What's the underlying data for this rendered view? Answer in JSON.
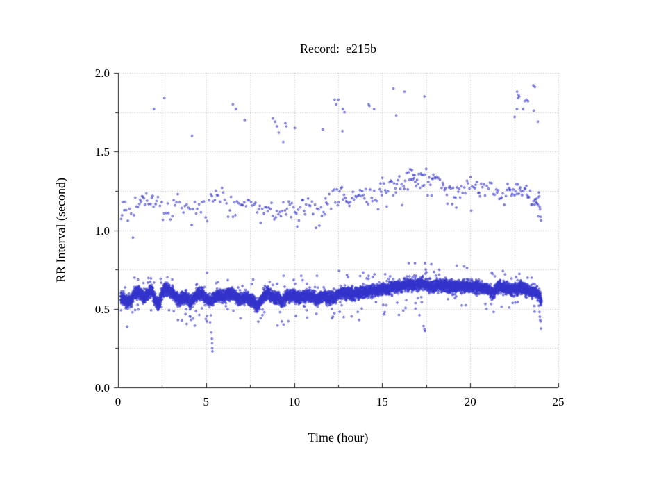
{
  "window": {
    "background": "#ffffff"
  },
  "chart_data": {
    "type": "scatter",
    "title": "Record:  e215b",
    "xlabel": "Time (hour)",
    "ylabel": "RR Interval (second)",
    "xlim": [
      0,
      25
    ],
    "ylim": [
      0.0,
      2.0
    ],
    "grid": {
      "style": "dotted",
      "color": "#b8b8b8",
      "x_step": 2.5,
      "y_step": 0.25
    },
    "axis_color": "#1a1a1a",
    "marker": {
      "shape": "open-circle",
      "radius_px": 1.3,
      "color": "#3333cc",
      "fill": "rgba(60,60,210,0.30)"
    },
    "x_axis": {
      "major_ticks": [
        {
          "value": 0,
          "label": "0"
        },
        {
          "value": 5,
          "label": "5"
        },
        {
          "value": 10,
          "label": "10"
        },
        {
          "value": 15,
          "label": "15"
        },
        {
          "value": 20,
          "label": "20"
        },
        {
          "value": 25,
          "label": "25"
        }
      ],
      "minor_step": 2.5
    },
    "y_axis": {
      "major_ticks": [
        {
          "value": 0.0,
          "label": "0.0"
        },
        {
          "value": 0.5,
          "label": "0.5"
        },
        {
          "value": 1.0,
          "label": "1.0"
        },
        {
          "value": 1.5,
          "label": "1.5"
        },
        {
          "value": 2.0,
          "label": "2.0"
        }
      ],
      "minor_step": 0.25
    },
    "seed": 1337,
    "series": [
      {
        "name": "normal-rr-band",
        "representation": "dense-band-profile",
        "points_total": 7400,
        "hour_range": [
          0.15,
          24.05
        ],
        "spread": 0.024,
        "low_fringe_prob": 0.012,
        "high_fringe_prob": 0.01,
        "profile": [
          [
            0.15,
            0.575
          ],
          [
            0.3,
            0.56
          ],
          [
            0.5,
            0.545
          ],
          [
            0.7,
            0.55
          ],
          [
            0.9,
            0.59
          ],
          [
            1.1,
            0.615
          ],
          [
            1.3,
            0.6
          ],
          [
            1.5,
            0.565
          ],
          [
            1.7,
            0.6
          ],
          [
            1.9,
            0.625
          ],
          [
            2.1,
            0.56
          ],
          [
            2.3,
            0.53
          ],
          [
            2.5,
            0.6
          ],
          [
            2.7,
            0.635
          ],
          [
            2.9,
            0.62
          ],
          [
            3.1,
            0.6
          ],
          [
            3.3,
            0.575
          ],
          [
            3.5,
            0.555
          ],
          [
            3.7,
            0.57
          ],
          [
            3.9,
            0.575
          ],
          [
            4.1,
            0.545
          ],
          [
            4.3,
            0.565
          ],
          [
            4.5,
            0.595
          ],
          [
            4.7,
            0.6
          ],
          [
            4.9,
            0.575
          ],
          [
            5.1,
            0.555
          ],
          [
            5.3,
            0.55
          ],
          [
            5.5,
            0.575
          ],
          [
            5.7,
            0.59
          ],
          [
            5.9,
            0.575
          ],
          [
            6.1,
            0.585
          ],
          [
            6.3,
            0.6
          ],
          [
            6.5,
            0.59
          ],
          [
            6.7,
            0.58
          ],
          [
            6.9,
            0.555
          ],
          [
            7.1,
            0.565
          ],
          [
            7.3,
            0.58
          ],
          [
            7.5,
            0.555
          ],
          [
            7.7,
            0.545
          ],
          [
            7.9,
            0.52
          ],
          [
            8.1,
            0.545
          ],
          [
            8.3,
            0.59
          ],
          [
            8.5,
            0.6
          ],
          [
            8.7,
            0.585
          ],
          [
            8.9,
            0.565
          ],
          [
            9.1,
            0.57
          ],
          [
            9.3,
            0.545
          ],
          [
            9.5,
            0.57
          ],
          [
            9.7,
            0.58
          ],
          [
            9.9,
            0.585
          ],
          [
            10.1,
            0.575
          ],
          [
            10.3,
            0.57
          ],
          [
            10.5,
            0.58
          ],
          [
            10.7,
            0.585
          ],
          [
            10.9,
            0.585
          ],
          [
            11.1,
            0.58
          ],
          [
            11.3,
            0.555
          ],
          [
            11.5,
            0.575
          ],
          [
            11.7,
            0.59
          ],
          [
            11.9,
            0.56
          ],
          [
            12.1,
            0.575
          ],
          [
            12.3,
            0.565
          ],
          [
            12.5,
            0.6
          ],
          [
            12.7,
            0.605
          ],
          [
            12.9,
            0.6
          ],
          [
            13.1,
            0.6
          ],
          [
            13.3,
            0.59
          ],
          [
            13.5,
            0.595
          ],
          [
            13.7,
            0.6
          ],
          [
            13.9,
            0.61
          ],
          [
            14.1,
            0.605
          ],
          [
            14.3,
            0.615
          ],
          [
            14.5,
            0.62
          ],
          [
            14.7,
            0.615
          ],
          [
            14.9,
            0.625
          ],
          [
            15.1,
            0.63
          ],
          [
            15.3,
            0.625
          ],
          [
            15.5,
            0.635
          ],
          [
            15.7,
            0.64
          ],
          [
            15.9,
            0.645
          ],
          [
            16.1,
            0.645
          ],
          [
            16.3,
            0.65
          ],
          [
            16.5,
            0.655
          ],
          [
            16.7,
            0.65
          ],
          [
            16.9,
            0.655
          ],
          [
            17.1,
            0.655
          ],
          [
            17.3,
            0.665
          ],
          [
            17.5,
            0.655
          ],
          [
            17.7,
            0.645
          ],
          [
            17.9,
            0.64
          ],
          [
            18.1,
            0.645
          ],
          [
            18.3,
            0.65
          ],
          [
            18.5,
            0.65
          ],
          [
            18.7,
            0.645
          ],
          [
            18.9,
            0.64
          ],
          [
            19.1,
            0.645
          ],
          [
            19.3,
            0.64
          ],
          [
            19.5,
            0.638
          ],
          [
            19.7,
            0.645
          ],
          [
            19.9,
            0.645
          ],
          [
            20.1,
            0.64
          ],
          [
            20.3,
            0.638
          ],
          [
            20.5,
            0.64
          ],
          [
            20.7,
            0.635
          ],
          [
            20.9,
            0.625
          ],
          [
            21.1,
            0.615
          ],
          [
            21.3,
            0.6
          ],
          [
            21.5,
            0.63
          ],
          [
            21.7,
            0.64
          ],
          [
            21.9,
            0.635
          ],
          [
            22.1,
            0.63
          ],
          [
            22.3,
            0.62
          ],
          [
            22.5,
            0.625
          ],
          [
            22.7,
            0.63
          ],
          [
            22.9,
            0.635
          ],
          [
            23.1,
            0.625
          ],
          [
            23.3,
            0.615
          ],
          [
            23.5,
            0.605
          ],
          [
            23.7,
            0.61
          ],
          [
            23.9,
            0.59
          ],
          [
            24.0,
            0.565
          ],
          [
            24.05,
            0.545
          ]
        ]
      },
      {
        "name": "long-rr-band",
        "representation": "sparse-band-profile",
        "hour_range": [
          0.18,
          24.03
        ],
        "base_spread": 0.042,
        "wide_spread": 0.07,
        "wide_before_hour": 0.9,
        "wide_after_hour": 23.82,
        "low_stray_prob": 0.06,
        "profile": [
          [
            0.2,
            1.13
          ],
          [
            0.5,
            1.1
          ],
          [
            1.0,
            1.17
          ],
          [
            1.5,
            1.17
          ],
          [
            2.0,
            1.18
          ],
          [
            2.5,
            1.13
          ],
          [
            3.0,
            1.15
          ],
          [
            3.5,
            1.15
          ],
          [
            4.0,
            1.12
          ],
          [
            4.5,
            1.14
          ],
          [
            5.0,
            1.17
          ],
          [
            5.5,
            1.19
          ],
          [
            6.0,
            1.2
          ],
          [
            6.5,
            1.17
          ],
          [
            7.0,
            1.15
          ],
          [
            7.5,
            1.17
          ],
          [
            8.0,
            1.13
          ],
          [
            8.5,
            1.12
          ],
          [
            9.0,
            1.1
          ],
          [
            9.5,
            1.13
          ],
          [
            10.0,
            1.13
          ],
          [
            10.5,
            1.15
          ],
          [
            11.0,
            1.16
          ],
          [
            11.5,
            1.13
          ],
          [
            12.0,
            1.2
          ],
          [
            12.5,
            1.22
          ],
          [
            13.0,
            1.2
          ],
          [
            13.5,
            1.22
          ],
          [
            14.0,
            1.21
          ],
          [
            14.5,
            1.24
          ],
          [
            15.0,
            1.27
          ],
          [
            15.5,
            1.28
          ],
          [
            16.0,
            1.3
          ],
          [
            16.5,
            1.31
          ],
          [
            17.0,
            1.33
          ],
          [
            17.5,
            1.31
          ],
          [
            18.0,
            1.3
          ],
          [
            18.5,
            1.27
          ],
          [
            19.0,
            1.25
          ],
          [
            19.5,
            1.26
          ],
          [
            20.0,
            1.28
          ],
          [
            20.5,
            1.28
          ],
          [
            21.0,
            1.26
          ],
          [
            21.5,
            1.22
          ],
          [
            22.0,
            1.23
          ],
          [
            22.5,
            1.26
          ],
          [
            23.0,
            1.27
          ],
          [
            23.3,
            1.22
          ],
          [
            23.6,
            1.18
          ],
          [
            23.9,
            1.16
          ],
          [
            24.0,
            1.1
          ]
        ],
        "density_per_hour": [
          [
            0.2,
            17
          ],
          [
            1,
            13
          ],
          [
            2,
            12
          ],
          [
            3,
            11
          ],
          [
            4,
            12
          ],
          [
            5,
            13
          ],
          [
            6,
            13
          ],
          [
            7,
            12
          ],
          [
            8,
            13
          ],
          [
            9,
            15
          ],
          [
            10,
            13
          ],
          [
            11,
            13
          ],
          [
            12,
            14
          ],
          [
            13,
            13
          ],
          [
            14,
            14
          ],
          [
            15,
            17
          ],
          [
            16,
            18
          ],
          [
            17,
            18
          ],
          [
            18,
            16
          ],
          [
            19,
            15
          ],
          [
            20,
            15
          ],
          [
            21,
            14
          ],
          [
            22,
            16
          ],
          [
            22.5,
            22
          ],
          [
            23,
            20
          ],
          [
            23.5,
            16
          ],
          [
            23.85,
            42
          ],
          [
            24.03,
            30
          ]
        ]
      },
      {
        "name": "high-outliers",
        "representation": "points",
        "points": [
          [
            2.04,
            1.77
          ],
          [
            2.63,
            1.84
          ],
          [
            4.2,
            1.6
          ],
          [
            6.52,
            1.8
          ],
          [
            6.69,
            1.77
          ],
          [
            7.19,
            1.7
          ],
          [
            8.8,
            1.71
          ],
          [
            8.92,
            1.69
          ],
          [
            9.02,
            1.66
          ],
          [
            9.12,
            1.62
          ],
          [
            9.38,
            1.56
          ],
          [
            9.5,
            1.68
          ],
          [
            9.56,
            1.66
          ],
          [
            10.04,
            1.65
          ],
          [
            11.63,
            1.64
          ],
          [
            12.3,
            1.83
          ],
          [
            12.39,
            1.8
          ],
          [
            12.51,
            1.83
          ],
          [
            12.74,
            1.63
          ],
          [
            12.77,
            1.77
          ],
          [
            12.86,
            1.75
          ],
          [
            14.23,
            1.8
          ],
          [
            14.27,
            1.79
          ],
          [
            14.54,
            1.77
          ],
          [
            15.64,
            1.9
          ],
          [
            15.8,
            1.73
          ],
          [
            16.26,
            1.88
          ],
          [
            17.4,
            1.85
          ],
          [
            22.52,
            1.72
          ],
          [
            22.65,
            1.77
          ],
          [
            22.66,
            1.88
          ],
          [
            22.71,
            1.84
          ],
          [
            22.74,
            1.86
          ],
          [
            22.78,
            1.85
          ],
          [
            23.0,
            1.77
          ],
          [
            23.09,
            1.82
          ],
          [
            23.19,
            1.83
          ],
          [
            23.28,
            1.82
          ],
          [
            23.58,
            1.92
          ],
          [
            23.61,
            1.76
          ],
          [
            23.67,
            1.91
          ],
          [
            23.84,
            1.69
          ]
        ]
      },
      {
        "name": "low-outliers",
        "representation": "points",
        "points": [
          [
            4.1,
            0.45
          ],
          [
            4.15,
            0.43
          ],
          [
            5.05,
            0.42
          ],
          [
            5.3,
            0.35
          ],
          [
            5.33,
            0.31
          ],
          [
            5.34,
            0.28
          ],
          [
            5.35,
            0.25
          ],
          [
            5.36,
            0.23
          ],
          [
            7.9,
            0.48
          ],
          [
            8.1,
            0.44
          ],
          [
            8.2,
            0.46
          ],
          [
            9.3,
            0.42
          ],
          [
            9.4,
            0.4
          ],
          [
            10.1,
            0.455
          ],
          [
            10.7,
            0.49
          ],
          [
            12.2,
            0.45
          ],
          [
            17.35,
            0.39
          ],
          [
            17.4,
            0.37
          ],
          [
            17.43,
            0.36
          ],
          [
            20.93,
            0.5
          ],
          [
            21.33,
            0.48
          ],
          [
            23.9,
            0.52
          ],
          [
            23.93,
            0.48
          ],
          [
            23.95,
            0.45
          ],
          [
            23.97,
            0.43
          ],
          [
            23.99,
            0.42
          ],
          [
            24.02,
            0.375
          ]
        ]
      },
      {
        "name": "mid-strays",
        "representation": "points",
        "points": [
          [
            2.8,
            0.7
          ],
          [
            5.05,
            0.73
          ],
          [
            9.4,
            0.71
          ],
          [
            10.4,
            0.71
          ],
          [
            11.3,
            0.71
          ],
          [
            12.55,
            0.74
          ],
          [
            13.0,
            0.715
          ],
          [
            15.17,
            0.72
          ],
          [
            16.86,
            0.79
          ],
          [
            17.43,
            0.79
          ],
          [
            17.47,
            0.75
          ],
          [
            21.22,
            0.73
          ]
        ]
      }
    ]
  }
}
